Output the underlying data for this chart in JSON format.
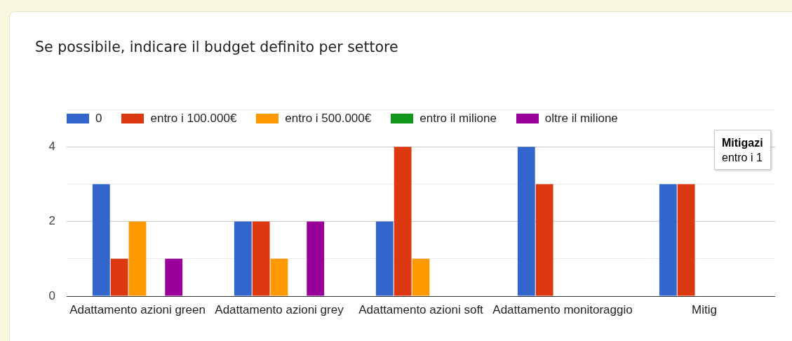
{
  "chart_data": {
    "type": "bar",
    "title": "Se possibile, indicare il budget definito per settore",
    "categories": [
      "Adattamento azioni green",
      "Adattamento azioni grey",
      "Adattamento azioni soft",
      "Adattamento monitoraggio",
      "Mitig"
    ],
    "series": [
      {
        "name": "0",
        "color": "#3366cc",
        "values": [
          3,
          2,
          2,
          4,
          3
        ]
      },
      {
        "name": "entro i 100.000€",
        "color": "#dc3912",
        "values": [
          1,
          2,
          4,
          3,
          3
        ]
      },
      {
        "name": "entro i 500.000€",
        "color": "#ff9900",
        "values": [
          2,
          1,
          1,
          0,
          null
        ]
      },
      {
        "name": "entro il milione",
        "color": "#109618",
        "values": [
          0,
          0,
          0,
          0,
          null
        ]
      },
      {
        "name": "oltre il milione",
        "color": "#990099",
        "values": [
          1,
          2,
          0,
          0,
          null
        ]
      }
    ],
    "ylim": [
      0,
      5
    ],
    "yticks": [
      0,
      {
        "value": 1,
        "label": null
      },
      2,
      {
        "value": 3,
        "label": null
      },
      4,
      {
        "value": 5,
        "label": null
      }
    ],
    "grid": "y",
    "legend": "top left",
    "annotations": [
      "Mitigazi\nentro i 1"
    ]
  }
}
